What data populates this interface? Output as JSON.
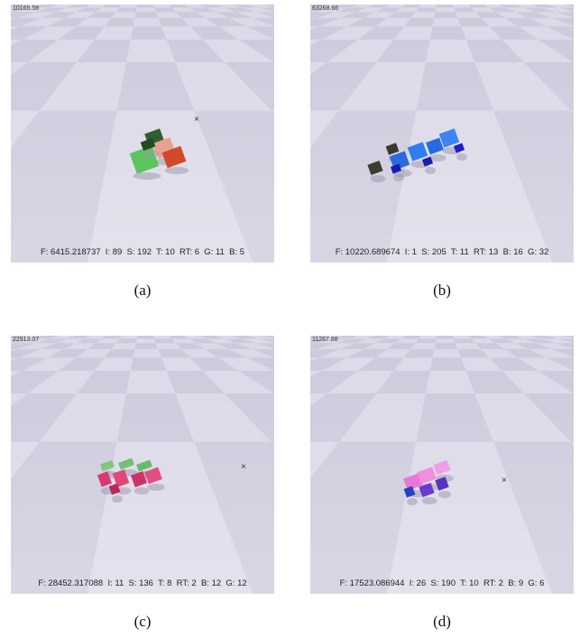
{
  "panels": [
    {
      "corner": "10165.58",
      "status": "F: 6415.218737  I: 89  S: 192  T: 10  RT: 6  G: 11  B: 5",
      "caption": "(a)"
    },
    {
      "corner": "63268.66",
      "status": "F: 10220.689674  I: 1  S: 205  T: 11  RT: 13  B: 16  G: 32",
      "caption": "(b)"
    },
    {
      "corner": "22913.07",
      "status": "F: 28452.317088  I: 11  S: 136  T: 8  RT: 2  B: 12  G: 12",
      "caption": "(c)"
    },
    {
      "corner": "11267.88",
      "status": "F: 17523.086944  I: 26  S: 190  T: 10  RT: 2  B: 9  G: 6",
      "caption": "(d)"
    }
  ]
}
